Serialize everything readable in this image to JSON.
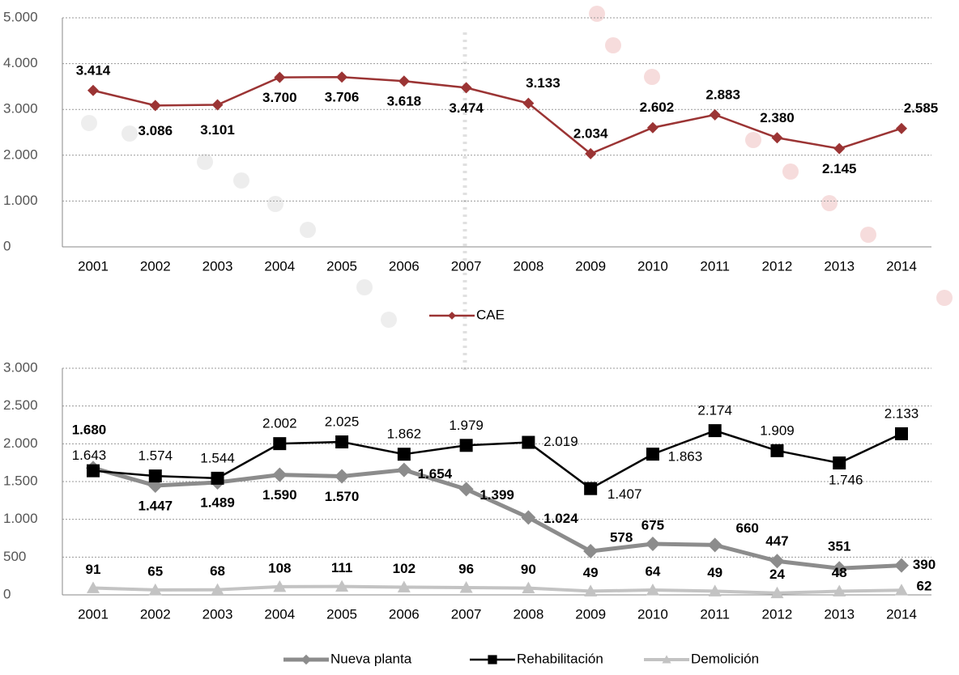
{
  "chart_data": [
    {
      "type": "line",
      "categories": [
        "2001",
        "2002",
        "2003",
        "2004",
        "2005",
        "2006",
        "2007",
        "2008",
        "2009",
        "2010",
        "2011",
        "2012",
        "2013",
        "2014"
      ],
      "series": [
        {
          "name": "CAE",
          "color": "#9b3434",
          "values": [
            3414,
            3086,
            3101,
            3700,
            3706,
            3618,
            3474,
            3133,
            2034,
            2602,
            2883,
            2380,
            2145,
            2585
          ],
          "value_labels": [
            "3.414",
            "3.086",
            "3.101",
            "3.700",
            "3.706",
            "3.618",
            "3.474",
            "3.133",
            "2.034",
            "2.602",
            "2.883",
            "2.380",
            "2.145",
            "2.585"
          ]
        }
      ],
      "ylim": [
        0,
        5000
      ],
      "yticks": [
        0,
        {
          "value": 1000,
          "label": "1.000"
        },
        {
          "value": 2000,
          "label": "2.000"
        },
        {
          "value": 3000,
          "label": "3.000"
        },
        {
          "value": 4000,
          "label": "4.000"
        },
        {
          "value": 5000,
          "label": "5.000"
        }
      ],
      "grid": true,
      "legend": "bottom"
    },
    {
      "type": "line",
      "categories": [
        "2001",
        "2002",
        "2003",
        "2004",
        "2005",
        "2006",
        "2007",
        "2008",
        "2009",
        "2010",
        "2011",
        "2012",
        "2013",
        "2014"
      ],
      "series": [
        {
          "name": "Nueva planta",
          "color": "#8c8c8c",
          "values": [
            1680,
            1447,
            1489,
            1590,
            1570,
            1654,
            1399,
            1024,
            578,
            675,
            660,
            447,
            351,
            390
          ],
          "value_labels": [
            "1.680",
            "1.447",
            "1.489",
            "1.590",
            "1.570",
            "1.654",
            "1.399",
            "1.024",
            "578",
            "675",
            "660",
            "447",
            "351",
            "390"
          ]
        },
        {
          "name": "Rehabilitación",
          "color": "#000000",
          "values": [
            1643,
            1574,
            1544,
            2002,
            2025,
            1862,
            1979,
            2019,
            1407,
            1863,
            2174,
            1909,
            1746,
            2133
          ],
          "value_labels": [
            "1.643",
            "1.574",
            "1.544",
            "2.002",
            "2.025",
            "1.862",
            "1.979",
            "2.019",
            "1.407",
            "1.863",
            "2.174",
            "1.909",
            "1.746",
            "2.133"
          ]
        },
        {
          "name": "Demolición",
          "color": "#c3c3c3",
          "values": [
            91,
            65,
            68,
            108,
            111,
            102,
            96,
            90,
            49,
            64,
            49,
            24,
            48,
            62
          ]
        }
      ],
      "ylim": [
        0,
        3000
      ],
      "yticks": [
        0,
        500,
        {
          "value": 1000,
          "label": "1.000"
        },
        {
          "value": 1500,
          "label": "1.500"
        },
        {
          "value": 2000,
          "label": "2.000"
        },
        {
          "value": 2500,
          "label": "2.500"
        },
        {
          "value": 3000,
          "label": "3.000"
        }
      ],
      "grid": true,
      "legend": "bottom"
    }
  ]
}
